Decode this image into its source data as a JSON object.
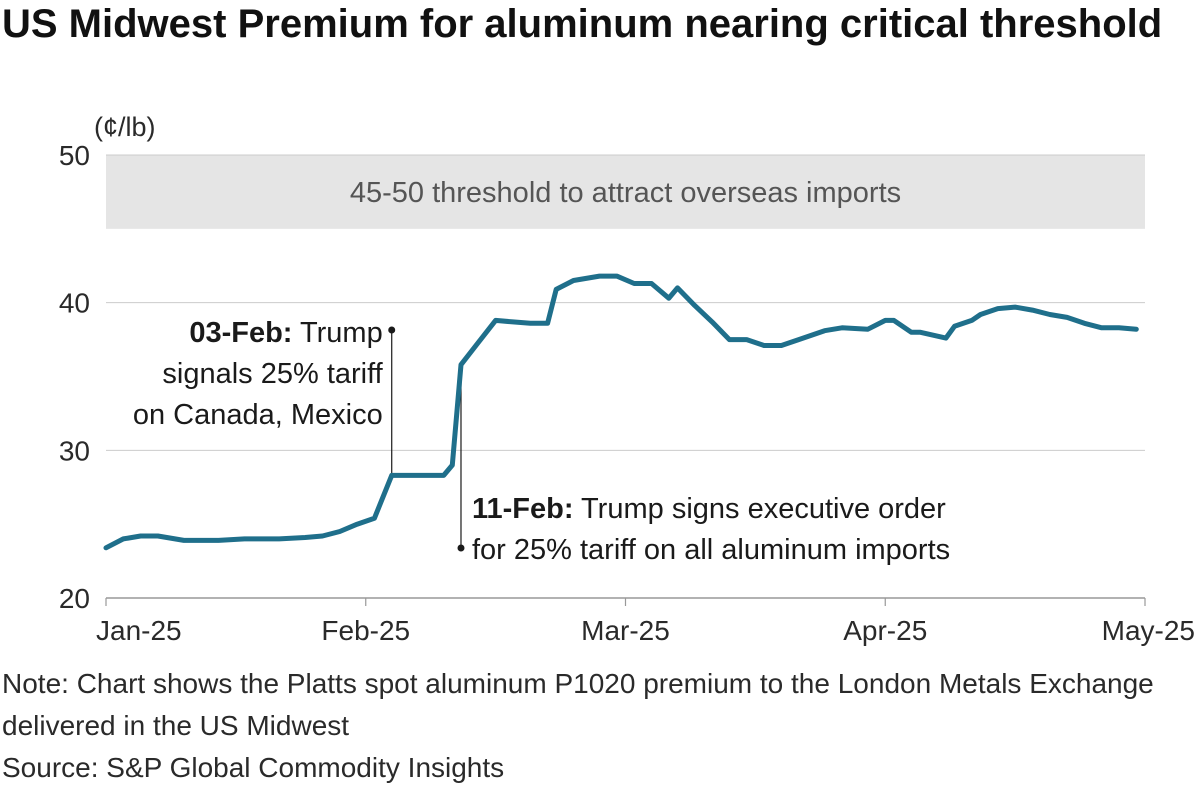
{
  "title": "US Midwest Premium for aluminum nearing critical threshold",
  "note": "Note: Chart shows the Platts spot aluminum P1020 premium to the London Metals Exchange delivered in the US Midwest",
  "source": "Source: S&P Global Commodity Insights",
  "colors": {
    "line": "#1f6f8b",
    "band": "#e5e5e5",
    "grid": "#cccccc"
  },
  "chart_data": {
    "type": "line",
    "unit": "(¢/lb)",
    "ylim": [
      20,
      50
    ],
    "yticks": [
      "20",
      "30",
      "40",
      "50"
    ],
    "xlim": [
      "2025-01-01",
      "2025-05-01"
    ],
    "xticks": [
      "Jan-25",
      "Feb-25",
      "Mar-25",
      "Apr-25",
      "May-25"
    ],
    "grid": true,
    "band": {
      "from": 45,
      "to": 50,
      "label": "45-50 threshold to attract overseas imports"
    },
    "annotations": [
      {
        "date": "2025-02-03",
        "bold": "03-Feb:",
        "lines": [
          " Trump",
          "signals 25% tariff",
          "on Canada, Mexico"
        ]
      },
      {
        "date": "2025-02-11",
        "bold": "11-Feb:",
        "lines": [
          " Trump signs executive order",
          "for 25% tariff on all aluminum imports"
        ]
      }
    ],
    "series": [
      {
        "x": [
          "2025-01-01",
          "2025-01-03",
          "2025-01-05",
          "2025-01-07",
          "2025-01-10",
          "2025-01-14",
          "2025-01-17",
          "2025-01-21",
          "2025-01-24",
          "2025-01-26",
          "2025-01-28",
          "2025-01-30",
          "2025-02-01",
          "2025-02-03",
          "2025-02-04",
          "2025-02-08",
          "2025-02-09",
          "2025-02-10",
          "2025-02-11",
          "2025-02-13",
          "2025-02-15",
          "2025-02-17",
          "2025-02-19",
          "2025-02-21",
          "2025-02-22",
          "2025-02-24",
          "2025-02-27",
          "2025-03-01",
          "2025-03-03",
          "2025-03-05",
          "2025-03-07",
          "2025-03-08",
          "2025-03-10",
          "2025-03-12",
          "2025-03-14",
          "2025-03-16",
          "2025-03-18",
          "2025-03-20",
          "2025-03-22",
          "2025-03-25",
          "2025-03-27",
          "2025-03-30",
          "2025-04-01",
          "2025-04-02",
          "2025-04-04",
          "2025-04-05",
          "2025-04-08",
          "2025-04-09",
          "2025-04-11",
          "2025-04-12",
          "2025-04-14",
          "2025-04-16",
          "2025-04-18",
          "2025-04-20",
          "2025-04-22",
          "2025-04-24",
          "2025-04-26",
          "2025-04-28",
          "2025-04-30"
        ],
        "y": [
          23.4,
          24.0,
          24.2,
          24.2,
          23.9,
          23.9,
          24.0,
          24.0,
          24.1,
          24.2,
          24.5,
          25.0,
          25.4,
          28.3,
          28.3,
          28.3,
          28.3,
          29.0,
          35.8,
          37.3,
          38.8,
          38.7,
          38.6,
          38.6,
          40.9,
          41.5,
          41.8,
          41.8,
          41.3,
          41.3,
          40.3,
          41.0,
          39.8,
          38.7,
          37.5,
          37.5,
          37.1,
          37.1,
          37.5,
          38.1,
          38.3,
          38.2,
          38.8,
          38.8,
          38.0,
          38.0,
          37.6,
          38.4,
          38.8,
          39.2,
          39.6,
          39.7,
          39.5,
          39.2,
          39.0,
          38.6,
          38.3,
          38.3,
          38.2
        ]
      }
    ]
  }
}
